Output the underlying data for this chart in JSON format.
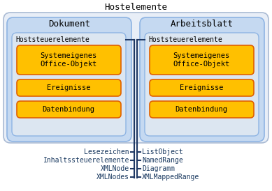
{
  "title": "Hostelemente",
  "bg_outer_fill": "#e8eef7",
  "bg_outer_edge": "#aabbd4",
  "bg_mid_fill": "#c5d9f1",
  "bg_mid_edge": "#8eb4e3",
  "bg_inner_fill": "#dce6f1",
  "bg_inner_edge": "#8eb4e3",
  "orange_fill": "#ffc000",
  "orange_edge": "#e06000",
  "line_color": "#1f3864",
  "label_color": "#17375e",
  "doc_title": "Dokument",
  "arb_title": "Arbeitsblatt",
  "host_ctrl_label": "Hoststeuerelemente",
  "boxes": [
    "Systemeigenes\nOffice-Objekt",
    "Ereignisse",
    "Datenbindung"
  ],
  "left_labels": [
    "Lesezeichen",
    "Inhaltssteuerelemente",
    "XMLNode",
    "XMLNodes"
  ],
  "right_labels": [
    "ListObject",
    "NamedRange",
    "Diagramm",
    "XMLMappedRange"
  ]
}
